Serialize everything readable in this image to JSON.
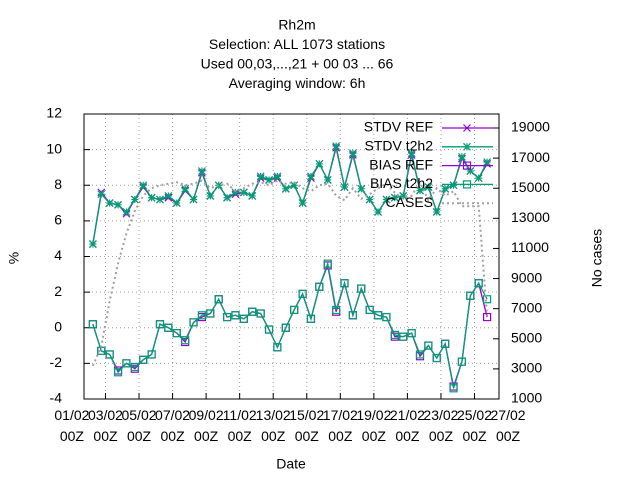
{
  "chart_data": {
    "type": "line",
    "title_lines": [
      "Rh2m",
      "Selection: ALL   1073 stations",
      "Used  00,03,...,21  + 00 03 ... 66",
      "Averaging window:  6h"
    ],
    "xlabel": "Date",
    "ylabel": "%",
    "y2label": "No cases",
    "x": [
      1.25,
      1.75,
      2.25,
      2.75,
      3.25,
      3.75,
      4.25,
      4.75,
      5.25,
      5.75,
      6.25,
      6.75,
      7.25,
      7.75,
      8.25,
      8.75,
      9.25,
      9.75,
      10.25,
      10.75,
      11.25,
      11.75,
      12.25,
      12.75,
      13.25,
      13.75,
      14.25,
      14.75,
      15.25,
      15.75,
      16.25,
      16.75,
      17.25,
      17.75,
      18.25,
      18.75,
      19.25,
      19.75,
      20.25,
      20.75,
      21.25,
      21.75,
      22.25,
      22.75,
      23.25,
      23.75,
      24.25,
      24.75
    ],
    "xlim": [
      0.72,
      25.46
    ],
    "xticks": [
      {
        "value": 0,
        "label": "01/02\n00Z"
      },
      {
        "value": 2,
        "label": "03/02\n00Z"
      },
      {
        "value": 4,
        "label": "05/02\n00Z"
      },
      {
        "value": 6,
        "label": "07/02\n00Z"
      },
      {
        "value": 8,
        "label": "09/02\n00Z"
      },
      {
        "value": 10,
        "label": "11/02\n00Z"
      },
      {
        "value": 12,
        "label": "13/02\n00Z"
      },
      {
        "value": 14,
        "label": "15/02\n00Z"
      },
      {
        "value": 16,
        "label": "17/02\n00Z"
      },
      {
        "value": 18,
        "label": "19/02\n00Z"
      },
      {
        "value": 20,
        "label": "21/02\n00Z"
      },
      {
        "value": 22,
        "label": "23/02\n00Z"
      },
      {
        "value": 24,
        "label": "25/02\n00Z"
      },
      {
        "value": 26,
        "label": "27/02\n00Z"
      }
    ],
    "ylim": [
      -4,
      12
    ],
    "yticks": [
      -4,
      -2,
      0,
      2,
      4,
      6,
      8,
      10,
      12
    ],
    "y2lim": [
      1000,
      19930
    ],
    "y2ticks": [
      1000,
      3000,
      5000,
      7000,
      9000,
      11000,
      13000,
      15000,
      17000,
      19000
    ],
    "grid": true,
    "legend": "top-right",
    "series": [
      {
        "name": "STDV REF",
        "color": "#9400d3",
        "marker": "x",
        "values": [
          4.7,
          7.6,
          7.0,
          6.9,
          6.4,
          7.2,
          7.9,
          7.3,
          7.2,
          7.3,
          7.0,
          7.7,
          7.2,
          8.7,
          7.4,
          8.0,
          7.3,
          7.5,
          7.6,
          7.4,
          8.4,
          8.3,
          8.4,
          7.8,
          8.0,
          7.0,
          8.4,
          9.2,
          8.3,
          10.1,
          7.9,
          9.7,
          7.8,
          7.2,
          6.5,
          7.2,
          7.3,
          7.4,
          9.7,
          7.7,
          7.9,
          6.5,
          7.8,
          8.0,
          9.5,
          8.8,
          8.4,
          9.2
        ]
      },
      {
        "name": "STDV t2h2",
        "color": "#009e73",
        "marker": "star",
        "values": [
          4.7,
          7.5,
          7.0,
          6.9,
          6.5,
          7.2,
          8.0,
          7.3,
          7.2,
          7.4,
          7.0,
          7.8,
          7.2,
          8.8,
          7.4,
          8.0,
          7.3,
          7.6,
          7.6,
          7.4,
          8.5,
          8.3,
          8.5,
          7.8,
          8.0,
          7.0,
          8.5,
          9.2,
          8.3,
          10.2,
          7.9,
          9.8,
          7.8,
          7.2,
          6.5,
          7.2,
          7.3,
          7.4,
          9.8,
          7.7,
          7.9,
          6.5,
          7.8,
          8.0,
          9.6,
          8.8,
          8.4,
          9.3
        ]
      },
      {
        "name": "BIAS REF",
        "color": "#9400d3",
        "marker": "square",
        "values": [
          0.2,
          -1.3,
          -1.5,
          -2.4,
          -2.0,
          -2.3,
          -1.8,
          -1.5,
          0.2,
          0.0,
          -0.3,
          -0.8,
          0.3,
          0.6,
          0.8,
          1.6,
          0.6,
          0.7,
          0.5,
          0.9,
          0.8,
          -0.1,
          -1.1,
          0.0,
          1.0,
          1.9,
          0.5,
          2.3,
          3.5,
          0.9,
          2.5,
          0.7,
          2.2,
          1.0,
          0.7,
          0.6,
          -0.5,
          -0.5,
          -0.3,
          -1.6,
          -1.0,
          -1.7,
          -0.9,
          -3.3,
          -1.9,
          1.8,
          2.5,
          0.6
        ]
      },
      {
        "name": "BIAS t2h2",
        "color": "#009e73",
        "marker": "square",
        "values": [
          0.2,
          -1.3,
          -1.5,
          -2.5,
          -2.0,
          -2.2,
          -1.8,
          -1.5,
          0.2,
          0.0,
          -0.3,
          -0.7,
          0.3,
          0.7,
          0.8,
          1.6,
          0.6,
          0.7,
          0.5,
          0.9,
          0.8,
          -0.1,
          -1.1,
          0.0,
          1.0,
          1.9,
          0.5,
          2.3,
          3.6,
          1.0,
          2.5,
          0.7,
          2.2,
          1.0,
          0.7,
          0.6,
          -0.4,
          -0.5,
          -0.3,
          -1.5,
          -1.0,
          -1.7,
          -0.9,
          -3.4,
          -1.9,
          1.8,
          2.5,
          1.6
        ]
      },
      {
        "name": "CASES",
        "color": "#a0a0a0",
        "dashed": true,
        "axis": "y2",
        "values": [
          3200,
          4500,
          7500,
          10000,
          12000,
          13500,
          14500,
          15000,
          15200,
          15300,
          15400,
          15200,
          15300,
          15500,
          15000,
          15200,
          15300,
          14800,
          15000,
          15300,
          15400,
          15200,
          15500,
          15300,
          15400,
          15000,
          14800,
          15200,
          15300,
          14500,
          14200,
          15000,
          14300,
          14600,
          15000,
          15300,
          14700,
          14300,
          14500,
          15400,
          14200,
          15000,
          14500,
          14800,
          13800,
          13800,
          13800,
          6500
        ]
      }
    ]
  }
}
